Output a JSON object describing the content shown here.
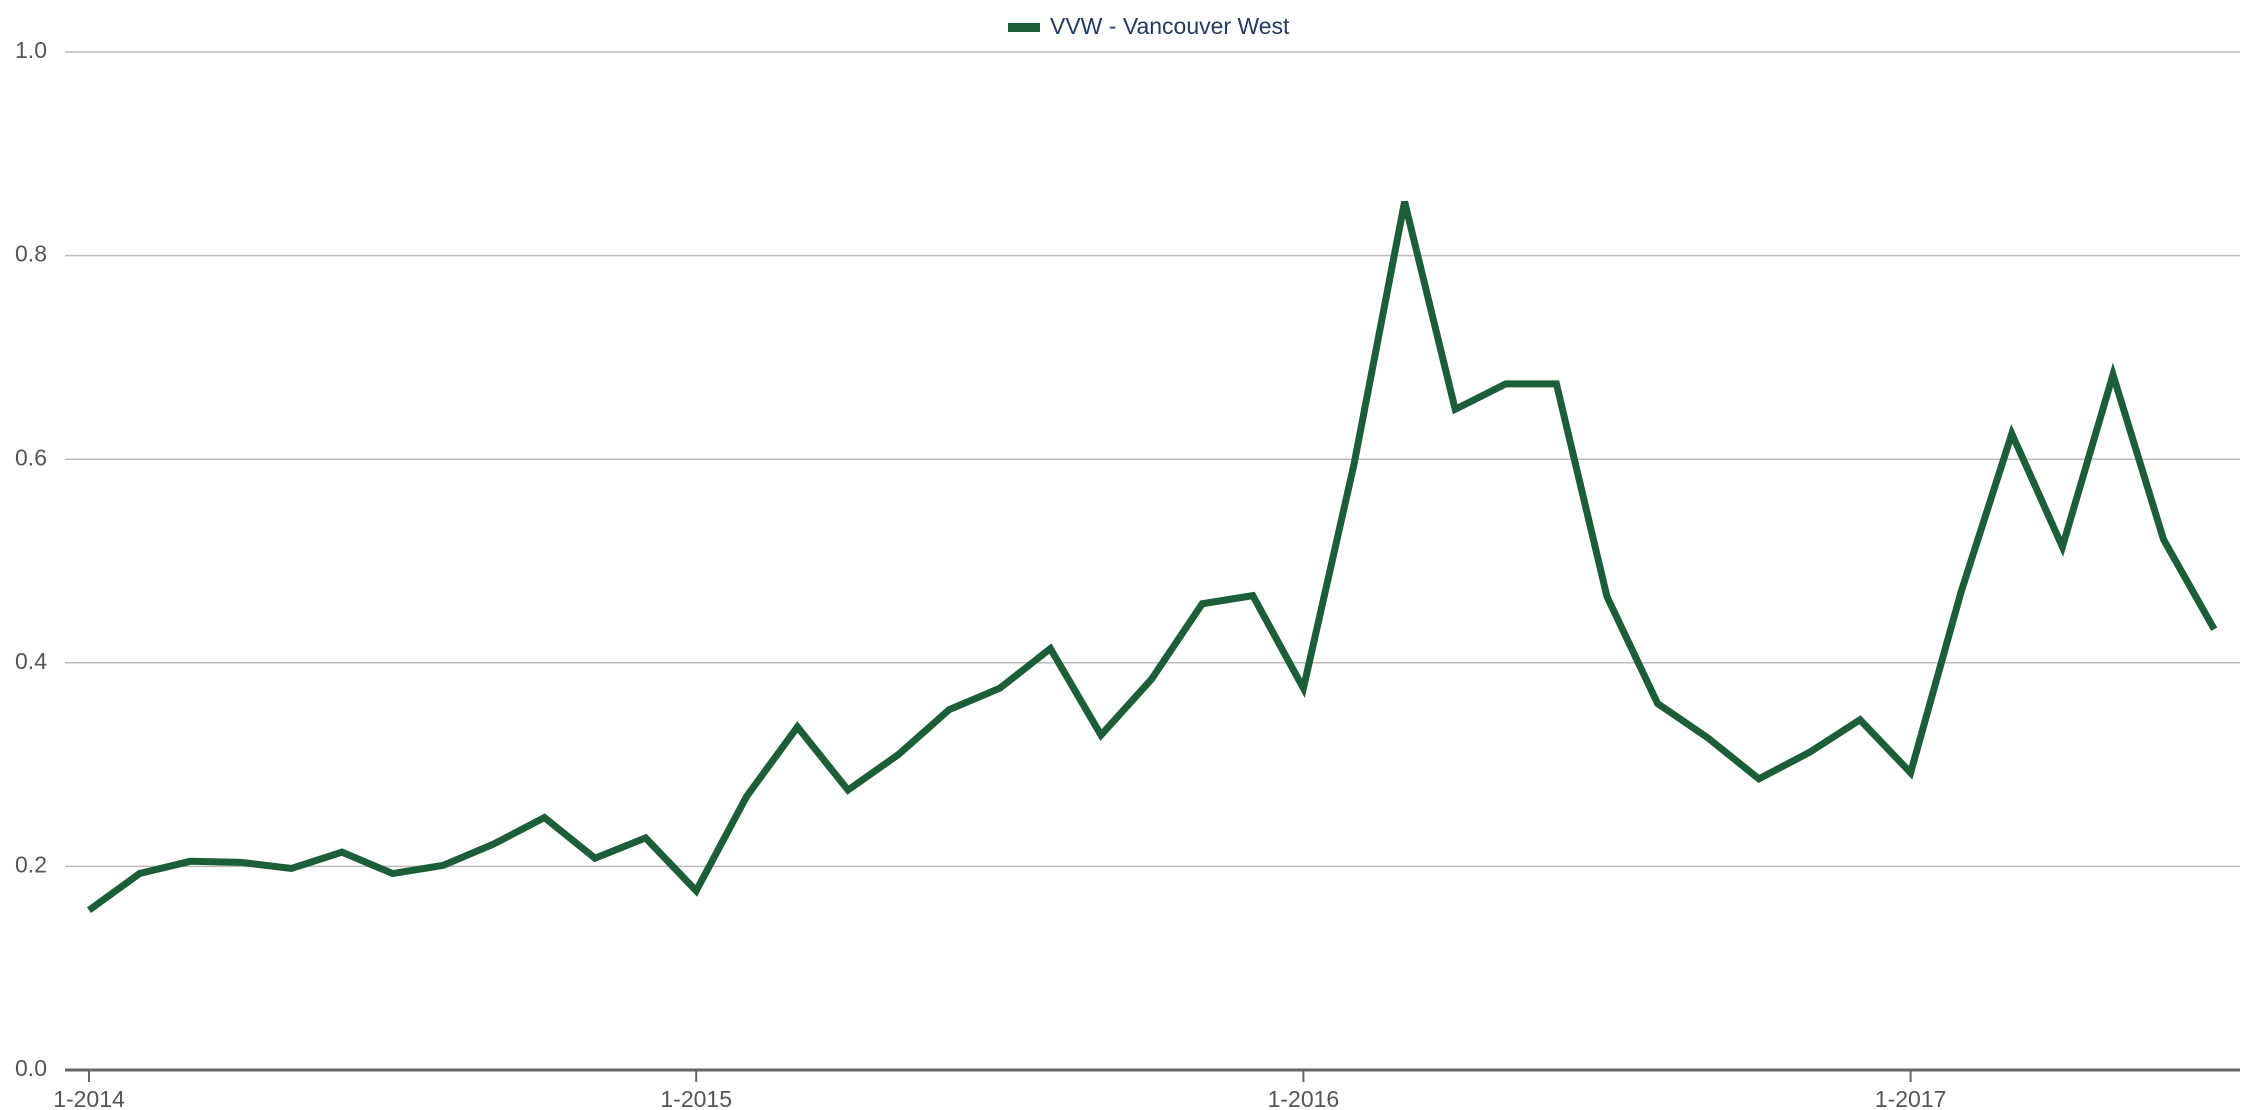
{
  "chart_data": {
    "type": "line",
    "categories": [
      "1-2014",
      null,
      null,
      null,
      null,
      null,
      null,
      null,
      null,
      null,
      null,
      null,
      "1-2015",
      null,
      null,
      null,
      null,
      null,
      null,
      null,
      null,
      null,
      null,
      null,
      "1-2016",
      null,
      null,
      null,
      null,
      null,
      null,
      null,
      null,
      null,
      null,
      null,
      "1-2017",
      null,
      null,
      null,
      null,
      null,
      null
    ],
    "series": [
      {
        "name": "VVW - Vancouver West",
        "color": "#1b5e38",
        "values": [
          0.157,
          0.193,
          0.205,
          0.204,
          0.198,
          0.214,
          0.193,
          0.201,
          0.222,
          0.248,
          0.208,
          0.228,
          0.176,
          0.269,
          0.337,
          0.275,
          0.31,
          0.354,
          0.375,
          0.414,
          0.329,
          0.384,
          0.458,
          0.466,
          0.375,
          0.595,
          0.853,
          0.649,
          0.674,
          0.674,
          0.465,
          0.36,
          0.326,
          0.286,
          0.312,
          0.344,
          0.292,
          0.47,
          0.625,
          0.514,
          0.683,
          0.521,
          0.433
        ]
      }
    ],
    "ylim": [
      0,
      1
    ],
    "yticks": [
      {
        "value": 0,
        "label": "0.0"
      },
      0.2,
      0.4,
      0.6,
      0.8,
      {
        "value": 1,
        "label": "1.0"
      }
    ],
    "grid": true,
    "legend": "top"
  }
}
